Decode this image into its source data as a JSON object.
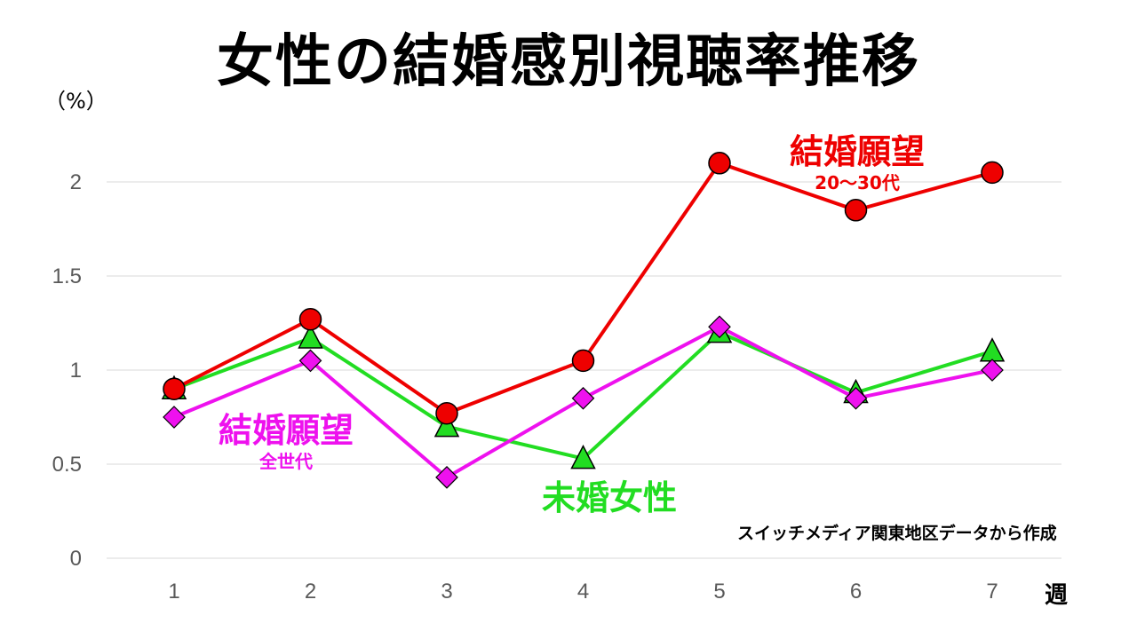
{
  "chart_data": {
    "type": "line",
    "title": "女性の結婚感別視聴率推移",
    "ylabel": "（%）",
    "xlabel": "週",
    "categories": [
      "1",
      "2",
      "3",
      "4",
      "5",
      "6",
      "7"
    ],
    "ylim": [
      0,
      2.5
    ],
    "yticks": [
      "0",
      "0.5",
      "1",
      "1.5",
      "2"
    ],
    "grid": true,
    "series": [
      {
        "id": "red",
        "name": "結婚願望",
        "sub": "20～30代",
        "color": "#ee0000",
        "marker": "circle",
        "values": [
          0.9,
          1.27,
          0.77,
          1.05,
          2.1,
          1.85,
          2.05
        ]
      },
      {
        "id": "green",
        "name": "未婚女性",
        "sub": "",
        "color": "#22dd22",
        "marker": "triangle",
        "values": [
          0.9,
          1.17,
          0.7,
          0.53,
          1.2,
          0.88,
          1.1
        ]
      },
      {
        "id": "magenta",
        "name": "結婚願望",
        "sub": "全世代",
        "color": "#ee11ee",
        "marker": "diamond",
        "values": [
          0.75,
          1.05,
          0.43,
          0.85,
          1.23,
          0.85,
          1.0
        ]
      }
    ],
    "annotations": {
      "source": "スイッチメディア関東地区データから作成"
    }
  }
}
